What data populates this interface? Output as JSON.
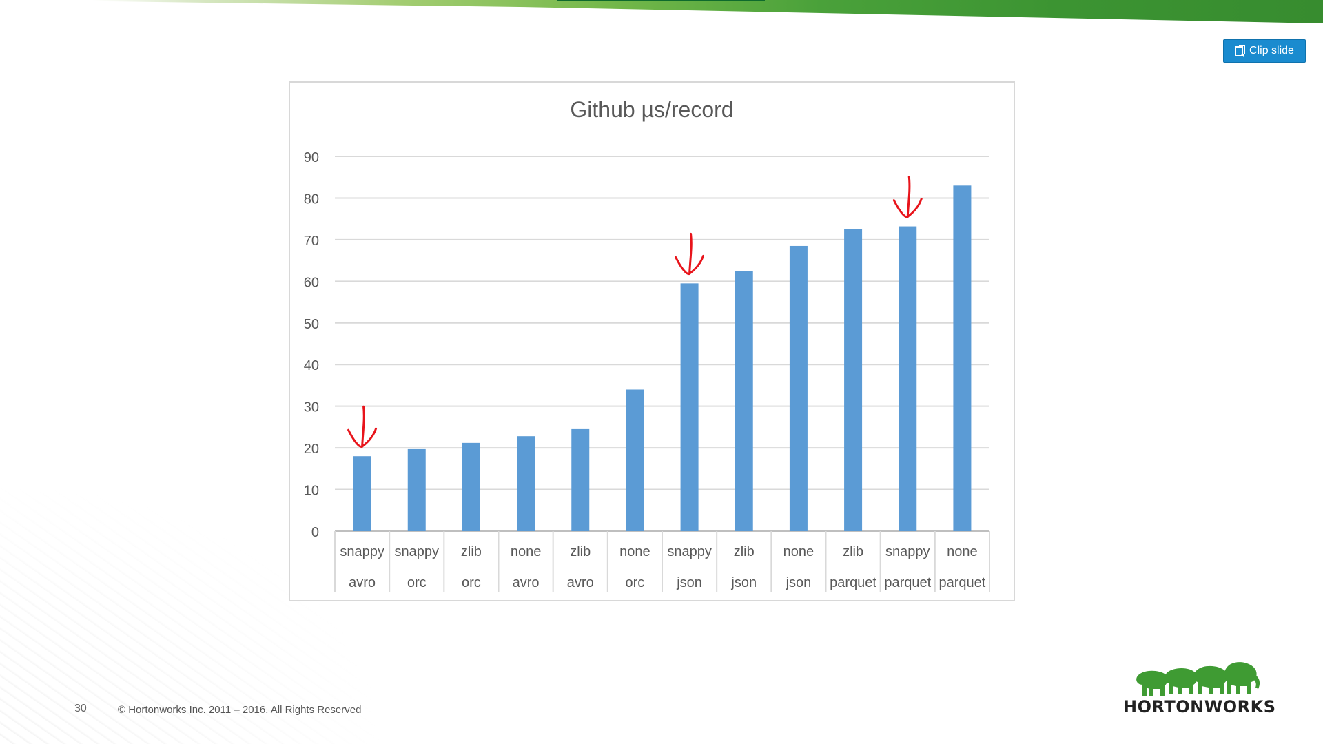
{
  "toolbar": {
    "clip_label": "Clip slide"
  },
  "icons": {
    "clip": "clip-slide-icon",
    "logo": "hortonworks-elephants-logo"
  },
  "colors": {
    "bar": "#5b9bd5",
    "annotation": "#e8141b",
    "button": "#1a8bcf",
    "brand_green": "#4aa13a"
  },
  "footer": {
    "page_number": "30",
    "copyright": "© Hortonworks Inc. 2011 – 2016. All Rights Reserved",
    "logo_text": "HORTONWORKS"
  },
  "chart_data": {
    "type": "bar",
    "title": "Github µs/record",
    "xlabel": "",
    "ylabel": "",
    "ylim": [
      0,
      90
    ],
    "yticks": [
      0,
      10,
      20,
      30,
      40,
      50,
      60,
      70,
      80,
      90
    ],
    "grid": true,
    "legend": "none",
    "categories": [
      [
        "snappy",
        "avro"
      ],
      [
        "snappy",
        "orc"
      ],
      [
        "zlib",
        "orc"
      ],
      [
        "none",
        "avro"
      ],
      [
        "zlib",
        "avro"
      ],
      [
        "none",
        "orc"
      ],
      [
        "snappy",
        "json"
      ],
      [
        "zlib",
        "json"
      ],
      [
        "none",
        "json"
      ],
      [
        "zlib",
        "parquet"
      ],
      [
        "snappy",
        "parquet"
      ],
      [
        "none",
        "parquet"
      ]
    ],
    "values": [
      18,
      19.7,
      21.2,
      22.8,
      24.5,
      34,
      59.5,
      62.5,
      68.5,
      72.5,
      73.2,
      83
    ],
    "annotations": [
      {
        "type": "hand-drawn-arrow",
        "category_index": 0
      },
      {
        "type": "hand-drawn-arrow",
        "category_index": 6
      },
      {
        "type": "hand-drawn-arrow",
        "category_index": 10
      }
    ]
  }
}
